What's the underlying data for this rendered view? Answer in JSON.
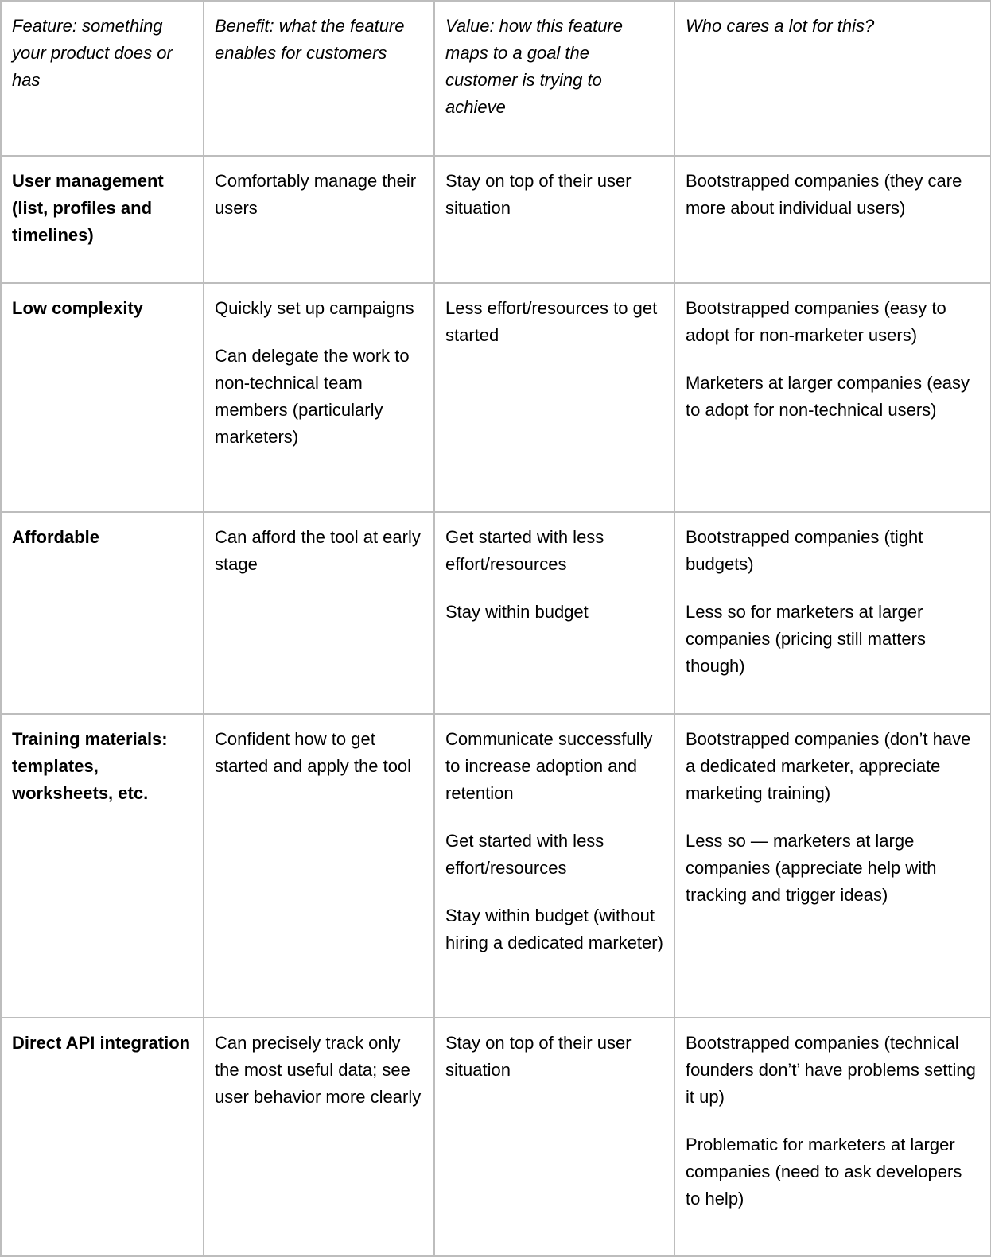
{
  "table": {
    "headers": [
      "Feature: something your product does or has",
      "Benefit: what the feature enables for customers",
      "Value: how this feature maps to a goal the customer is trying to achieve",
      "Who cares a lot for this?"
    ],
    "rows": [
      {
        "feature": [
          "User management (list, profiles and timelines)"
        ],
        "benefit": [
          "Comfortably manage their users"
        ],
        "value": [
          "Stay on top of their user situation"
        ],
        "who": [
          "Bootstrapped companies (they care more about individual users)"
        ]
      },
      {
        "feature": [
          "Low complexity"
        ],
        "benefit": [
          "Quickly set up campaigns",
          "Can delegate the work to non-technical team members (particularly marketers)"
        ],
        "value": [
          "Less effort/resources to get started"
        ],
        "who": [
          "Bootstrapped companies (easy to adopt for non-marketer users)",
          "Marketers at larger companies (easy to adopt for non-technical users)"
        ]
      },
      {
        "feature": [
          "Affordable"
        ],
        "benefit": [
          "Can afford the tool at early stage"
        ],
        "value": [
          "Get started with less effort/resources",
          "Stay within budget"
        ],
        "who": [
          "Bootstrapped companies (tight budgets)",
          "Less so for marketers at larger companies (pricing still matters though)"
        ]
      },
      {
        "feature": [
          "Training materials: templates, worksheets, etc."
        ],
        "benefit": [
          "Confident how to get started and apply the tool"
        ],
        "value": [
          "Communicate successfully to increase adoption and retention",
          "Get started with less effort/resources",
          "Stay within budget (without hiring a dedicated marketer)"
        ],
        "who": [
          "Bootstrapped companies (don’t have a dedicated marketer, appreciate marketing training)",
          "Less so — marketers at large companies (appreciate help with tracking and trigger ideas)"
        ]
      },
      {
        "feature": [
          "Direct API integration"
        ],
        "benefit": [
          "Can precisely track only the most useful data; see user behavior more clearly"
        ],
        "value": [
          "Stay on top of their user situation"
        ],
        "who": [
          "Bootstrapped companies (technical founders don’t’ have problems setting it up)",
          "Problematic for marketers at larger companies (need to ask developers to help)"
        ]
      }
    ]
  }
}
